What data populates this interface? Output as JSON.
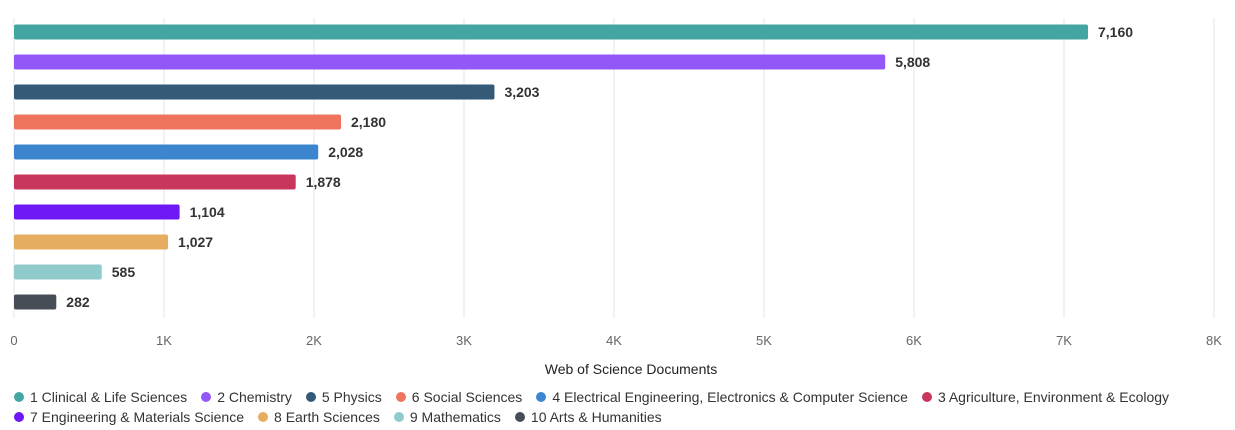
{
  "chart_data": {
    "type": "bar",
    "orientation": "horizontal",
    "xlabel": "Web of Science Documents",
    "xlim": [
      0,
      8000
    ],
    "xticks": [
      {
        "value": 0,
        "label": "0"
      },
      {
        "value": 1000,
        "label": "1K"
      },
      {
        "value": 2000,
        "label": "2K"
      },
      {
        "value": 3000,
        "label": "3K"
      },
      {
        "value": 4000,
        "label": "4K"
      },
      {
        "value": 5000,
        "label": "5K"
      },
      {
        "value": 6000,
        "label": "6K"
      },
      {
        "value": 7000,
        "label": "7K"
      },
      {
        "value": 8000,
        "label": "8K"
      }
    ],
    "grid": true,
    "legend_position": "bottom",
    "series": [
      {
        "name": "1 Clinical & Life Sciences",
        "value": 7160,
        "label": "7,160",
        "color": "#45a5a1"
      },
      {
        "name": "2 Chemistry",
        "value": 5808,
        "label": "5,808",
        "color": "#9357f7"
      },
      {
        "name": "5 Physics",
        "value": 3203,
        "label": "3,203",
        "color": "#355a78"
      },
      {
        "name": "6 Social Sciences",
        "value": 2180,
        "label": "2,180",
        "color": "#ef745f"
      },
      {
        "name": "4 Electrical Engineering, Electronics & Computer Science",
        "value": 2028,
        "label": "2,028",
        "color": "#3e85d0"
      },
      {
        "name": "3 Agriculture, Environment & Ecology",
        "value": 1878,
        "label": "1,878",
        "color": "#c8375b"
      },
      {
        "name": "7 Engineering & Materials Science",
        "value": 1104,
        "label": "1,104",
        "color": "#6e18f5"
      },
      {
        "name": "8 Earth Sciences",
        "value": 1027,
        "label": "1,027",
        "color": "#e6ad60"
      },
      {
        "name": "9 Mathematics",
        "value": 585,
        "label": "585",
        "color": "#8fcbcb"
      },
      {
        "name": "10 Arts & Humanities",
        "value": 282,
        "label": "282",
        "color": "#474d57"
      }
    ],
    "legend_order": [
      0,
      1,
      2,
      3,
      4,
      5,
      6,
      7,
      8,
      9
    ]
  }
}
